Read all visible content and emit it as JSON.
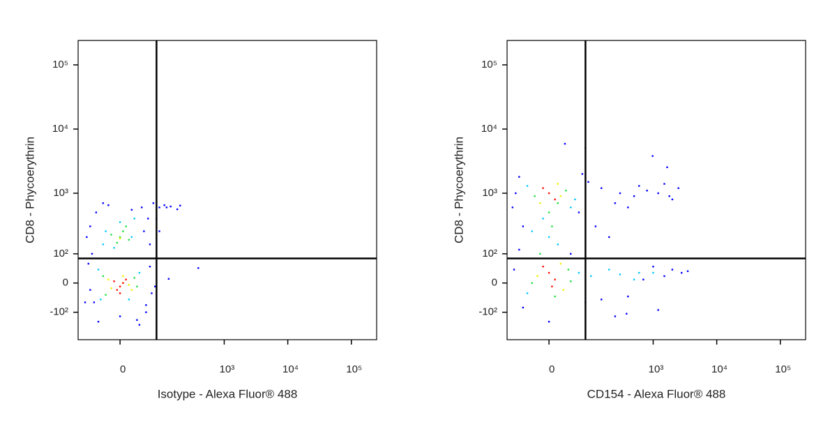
{
  "chart_data": [
    {
      "type": "scatter",
      "x_label": "Isotype - Alexa Fluor® 488",
      "y_label": "CD8 - Phycoerythrin",
      "xscale": {
        "type": "asinh",
        "width": 46
      },
      "yscale": {
        "type": "asinh",
        "width": 80
      },
      "xlim": [
        -100,
        250000
      ],
      "ylim": [
        -300,
        240000
      ],
      "xticks": [
        0,
        {
          "value": 1000,
          "label": "10³"
        },
        {
          "value": 10000,
          "label": "10⁴"
        },
        {
          "value": 100000,
          "label": "10⁵"
        }
      ],
      "yticks": [
        {
          "value": -100,
          "label": "-10²"
        },
        0,
        {
          "value": 100,
          "label": "10²"
        },
        {
          "value": 1000,
          "label": "10³"
        },
        {
          "value": 10000,
          "label": "10⁴"
        },
        {
          "value": 100000,
          "label": "10⁵"
        }
      ],
      "quadrant_gates": {
        "x": 80,
        "y": 80
      },
      "series": [
        {
          "color": "#0000ff",
          "x": [
            -50,
            50,
            -55,
            55,
            -45,
            40,
            -30,
            60,
            -60,
            50,
            -40,
            30,
            0,
            20,
            -20,
            60,
            -60,
            45,
            65,
            -65,
            70,
            90,
            110,
            140,
            80,
            90,
            120,
            200,
            180,
            390,
            130,
            -70,
            -75,
            75,
            35
          ],
          "y": [
            -60,
            -70,
            100,
            400,
            500,
            600,
            700,
            150,
            300,
            -100,
            -150,
            -140,
            -120,
            550,
            650,
            50,
            -20,
            250,
            -30,
            60,
            700,
            600,
            650,
            620,
            400,
            250,
            600,
            640,
            560,
            45,
            12,
            200,
            -60,
            -10,
            -170
          ]
        },
        {
          "color": "#00c8ff",
          "x": [
            0,
            -10,
            20,
            -25,
            15,
            -35,
            35,
            -40,
            25,
            -30
          ],
          "y": [
            350,
            130,
            200,
            250,
            -50,
            -50,
            30,
            40,
            400,
            150
          ]
        },
        {
          "color": "#20e040",
          "x": [
            0,
            5,
            -5,
            10,
            25,
            -25,
            30,
            -30,
            15,
            -15
          ],
          "y": [
            200,
            250,
            160,
            300,
            15,
            -35,
            -10,
            20,
            180,
            220
          ]
        },
        {
          "color": "#f0f000",
          "x": [
            15,
            -15,
            5,
            20,
            -20,
            0
          ],
          "y": [
            -5,
            -15,
            20,
            -20,
            10,
            190
          ]
        },
        {
          "color": "#ff1000",
          "x": [
            0,
            5,
            -5,
            10,
            -10,
            0
          ],
          "y": [
            -10,
            0,
            -20,
            10,
            5,
            -30
          ]
        }
      ]
    },
    {
      "type": "scatter",
      "x_label": "CD154 - Alexa Fluor® 488",
      "y_label": "CD8 - Phycoerythrin",
      "xscale": {
        "type": "asinh",
        "width": 46
      },
      "yscale": {
        "type": "asinh",
        "width": 80
      },
      "xlim": [
        -100,
        250000
      ],
      "ylim": [
        -300,
        240000
      ],
      "xticks": [
        0,
        {
          "value": 1000,
          "label": "10³"
        },
        {
          "value": 10000,
          "label": "10⁴"
        },
        {
          "value": 100000,
          "label": "10⁵"
        }
      ],
      "yticks": [
        {
          "value": -100,
          "label": "-10²"
        },
        0,
        {
          "value": 100,
          "label": "10²"
        },
        {
          "value": 1000,
          "label": "10³"
        },
        {
          "value": 10000,
          "label": "10⁴"
        },
        {
          "value": 100000,
          "label": "10⁵"
        }
      ],
      "quadrant_gates": {
        "x": 80,
        "y": 80
      },
      "series": [
        {
          "color": "#0000ff",
          "x": [
            -70,
            -60,
            70,
            60,
            -50,
            40,
            -60,
            80,
            -50,
            0,
            150,
            300,
            500,
            800,
            1200,
            1500,
            2000,
            2500,
            400,
            120,
            200,
            150,
            400,
            700,
            1000,
            1500,
            2000,
            2800,
            3500,
            1200,
            250,
            980,
            28,
            80,
            1660,
            380,
            -80,
            -75,
            90,
            600,
            250,
            1800
          ],
          "y": [
            1000,
            1800,
            2000,
            500,
            300,
            100,
            120,
            -60,
            -80,
            -150,
            1200,
            1000,
            900,
            1100,
            1000,
            1400,
            800,
            1200,
            600,
            300,
            200,
            -50,
            -40,
            10,
            50,
            20,
            40,
            30,
            35,
            -90,
            -120,
            3800,
            5900,
            5100,
            2540,
            -107,
            600,
            40,
            1500,
            1300,
            700,
            900
          ]
        },
        {
          "color": "#00c8ff",
          "x": [
            -40,
            50,
            0,
            -10,
            15,
            60,
            -40,
            100,
            200,
            300,
            600,
            40,
            -30,
            1000,
            500
          ],
          "y": [
            1300,
            800,
            200,
            400,
            150,
            30,
            -30,
            20,
            40,
            25,
            30,
            600,
            250,
            30,
            10
          ]
        },
        {
          "color": "#20e040",
          "x": [
            30,
            -25,
            0,
            5,
            35,
            -30,
            40,
            10,
            15,
            -15
          ],
          "y": [
            1100,
            900,
            500,
            300,
            40,
            0,
            5,
            -40,
            700,
            100
          ]
        },
        {
          "color": "#f0f000",
          "x": [
            20,
            -15,
            15,
            20,
            -20,
            25
          ],
          "y": [
            900,
            700,
            1400,
            60,
            20,
            -20
          ]
        },
        {
          "color": "#ff1000",
          "x": [
            0,
            10,
            -10,
            0,
            10,
            -10,
            5
          ],
          "y": [
            1000,
            800,
            1200,
            30,
            10,
            50,
            -10
          ]
        }
      ]
    }
  ]
}
